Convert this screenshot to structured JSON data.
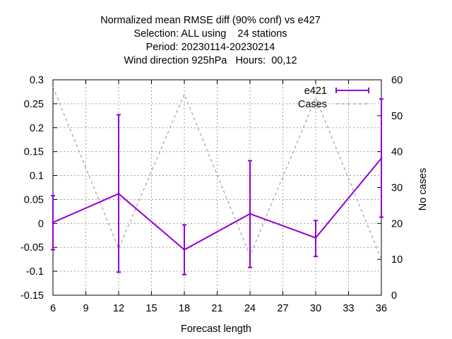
{
  "chart_data": {
    "type": "line",
    "title_lines": [
      "Normalized mean RMSE diff (90% conf) vs e427",
      "Selection: ALL using    24 stations",
      "Period: 20230114-20230214",
      "Wind direction 925hPa   Hours:  00,12"
    ],
    "xlabel": "Forecast length",
    "ylabel": "",
    "y2label": "No cases",
    "xlim": [
      6,
      36
    ],
    "ylim": [
      -0.15,
      0.3
    ],
    "y2lim": [
      0,
      60
    ],
    "x_ticks": [
      "6",
      "9",
      "12",
      "15",
      "18",
      "21",
      "24",
      "27",
      "30",
      "33",
      "36"
    ],
    "y_ticks": [
      "0.3",
      "0.25",
      "0.2",
      "0.15",
      "0.1",
      "0.05",
      "0",
      "-0.05",
      "-0.1",
      "-0.15"
    ],
    "y2_ticks": [
      "60",
      "50",
      "40",
      "30",
      "20",
      "10",
      "0"
    ],
    "grid": true,
    "legend_position": "top-right",
    "series": [
      {
        "name": "e421",
        "axis": "y",
        "color": "#9400d3",
        "style": "line with error bars",
        "x": [
          6,
          12,
          18,
          24,
          30,
          36
        ],
        "y": [
          0.002,
          0.062,
          -0.055,
          0.02,
          -0.03,
          0.136
        ],
        "err_low": [
          -0.055,
          -0.102,
          -0.107,
          -0.092,
          -0.069,
          0.013
        ],
        "err_high": [
          0.058,
          0.227,
          -0.003,
          0.131,
          0.006,
          0.26
        ]
      },
      {
        "name": "Cases",
        "axis": "y2",
        "color": "#a0a0a0",
        "style": "dashed",
        "x": [
          6,
          12,
          18,
          24,
          30,
          36
        ],
        "y": [
          58,
          13,
          56,
          11,
          55,
          10
        ]
      }
    ]
  }
}
